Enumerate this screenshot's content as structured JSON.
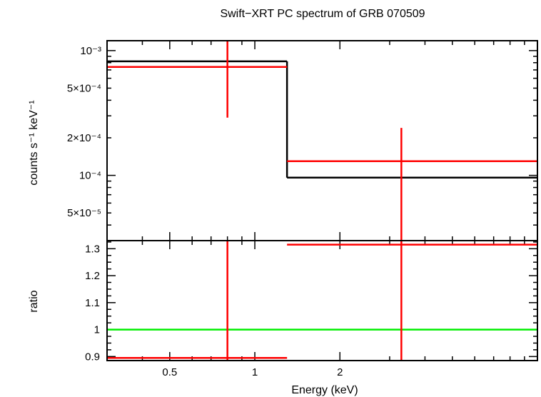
{
  "chart_data": [
    {
      "type": "line",
      "panel": "spectrum",
      "title": "Swift−XRT PC spectrum of GRB 070509",
      "ylabel": "counts s⁻¹ keV⁻¹",
      "yscale": "log",
      "xscale": "log",
      "xlim": [
        0.3,
        10
      ],
      "ylim": [
        3e-05,
        0.0012
      ],
      "y_ticks": [
        {
          "value": 0.001,
          "label": "10⁻³"
        },
        {
          "value": 0.0005,
          "label": "5×10⁻⁴"
        },
        {
          "value": 0.0002,
          "label": "2×10⁻⁴"
        },
        {
          "value": 0.0001,
          "label": "10⁻⁴"
        },
        {
          "value": 5e-05,
          "label": "5×10⁻⁵"
        }
      ],
      "series": [
        {
          "role": "model",
          "color": "#000000",
          "steps": [
            {
              "x0": 0.3,
              "x1": 1.3,
              "y": 0.00082
            },
            {
              "x0": 1.3,
              "x1": 10,
              "y": 9.6e-05
            }
          ]
        },
        {
          "role": "data",
          "color": "#ff0000",
          "points": [
            {
              "x": 0.8,
              "x_lo": 0.3,
              "x_hi": 1.3,
              "y": 0.00074,
              "y_lo": 0.00029,
              "y_hi": 0.0012
            },
            {
              "x": 3.3,
              "x_lo": 1.3,
              "x_hi": 10,
              "y": 0.00013,
              "y_lo": 3e-05,
              "y_hi": 0.00024
            }
          ]
        }
      ]
    },
    {
      "type": "scatter",
      "panel": "ratio",
      "xlabel": "Energy (keV)",
      "ylabel": "ratio",
      "xscale": "log",
      "xlim": [
        0.3,
        10
      ],
      "ylim": [
        0.885,
        1.33
      ],
      "x_ticks": [
        {
          "value": 0.5,
          "label": "0.5"
        },
        {
          "value": 1,
          "label": "1"
        },
        {
          "value": 2,
          "label": "2"
        }
      ],
      "y_ticks": [
        {
          "value": 0.9,
          "label": "0.9"
        },
        {
          "value": 1,
          "label": "1"
        },
        {
          "value": 1.1,
          "label": "1.1"
        },
        {
          "value": 1.2,
          "label": "1.2"
        },
        {
          "value": 1.3,
          "label": "1.3"
        }
      ],
      "reference_line": {
        "y": 1,
        "color": "#00ee00"
      },
      "series": [
        {
          "role": "data",
          "color": "#ff0000",
          "points": [
            {
              "x": 0.8,
              "x_lo": 0.3,
              "x_hi": 1.3,
              "y": 0.895,
              "y_lo": 0.885,
              "y_hi": 1.33
            },
            {
              "x": 3.3,
              "x_lo": 1.3,
              "x_hi": 10,
              "y": 1.315,
              "y_lo": 0.885,
              "y_hi": 1.33
            }
          ]
        }
      ]
    }
  ]
}
